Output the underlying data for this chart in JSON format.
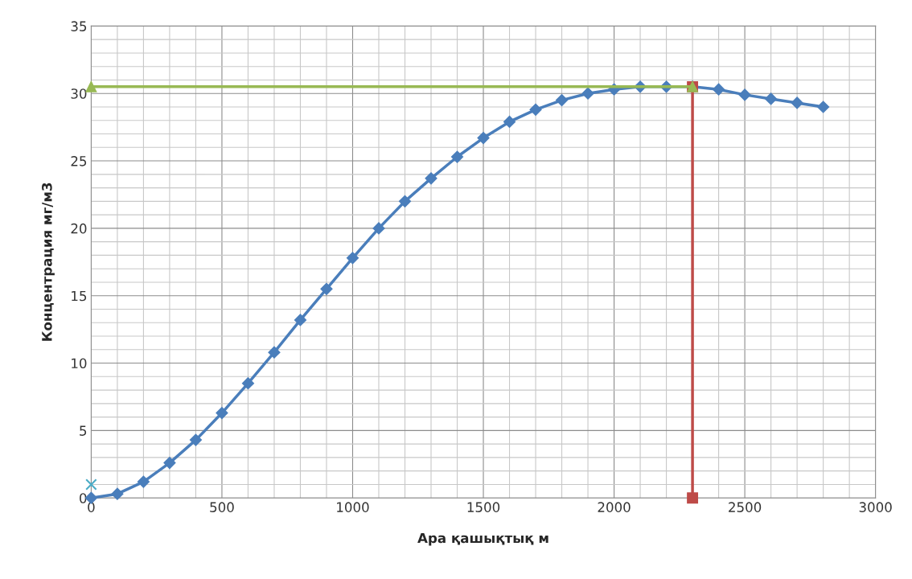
{
  "chart_data": {
    "type": "line",
    "xlabel": "Ара қашықтық м",
    "ylabel": "Концентрация мг/м3",
    "xlim": [
      0,
      3000
    ],
    "xticks": [
      0,
      500,
      1000,
      1500,
      2000,
      2500,
      3000
    ],
    "ylim": [
      0,
      35
    ],
    "yticks": [
      0,
      5,
      10,
      15,
      20,
      25,
      30,
      35
    ],
    "grid": true,
    "legend": false,
    "series": [
      {
        "color": "#4a7ebb",
        "marker": "diamond",
        "x": [
          0,
          100,
          200,
          300,
          400,
          500,
          600,
          700,
          800,
          900,
          1000,
          1100,
          1200,
          1300,
          1400,
          1500,
          1600,
          1700,
          1800,
          1900,
          2000,
          2100,
          2200,
          2300,
          2400,
          2500,
          2600,
          2700,
          2800
        ],
        "values": [
          0,
          0.3,
          1.2,
          2.6,
          4.3,
          6.3,
          8.5,
          10.8,
          13.2,
          15.5,
          17.8,
          20.0,
          22.0,
          23.7,
          25.3,
          26.7,
          27.9,
          28.8,
          29.5,
          30.0,
          30.3,
          30.5,
          30.5,
          30.5,
          30.3,
          29.9,
          29.6,
          29.3,
          29.0
        ]
      },
      {
        "color": "#be4b48",
        "marker": "square",
        "x": [
          2300,
          2300
        ],
        "values": [
          0,
          30.5
        ]
      },
      {
        "color": "#98b954",
        "marker": "triangle",
        "x": [
          0,
          2300
        ],
        "values": [
          30.5,
          30.5
        ]
      },
      {
        "type": "scatter",
        "color": "#4bacc6",
        "marker": "cross",
        "x": [
          0
        ],
        "values": [
          1
        ]
      }
    ]
  }
}
